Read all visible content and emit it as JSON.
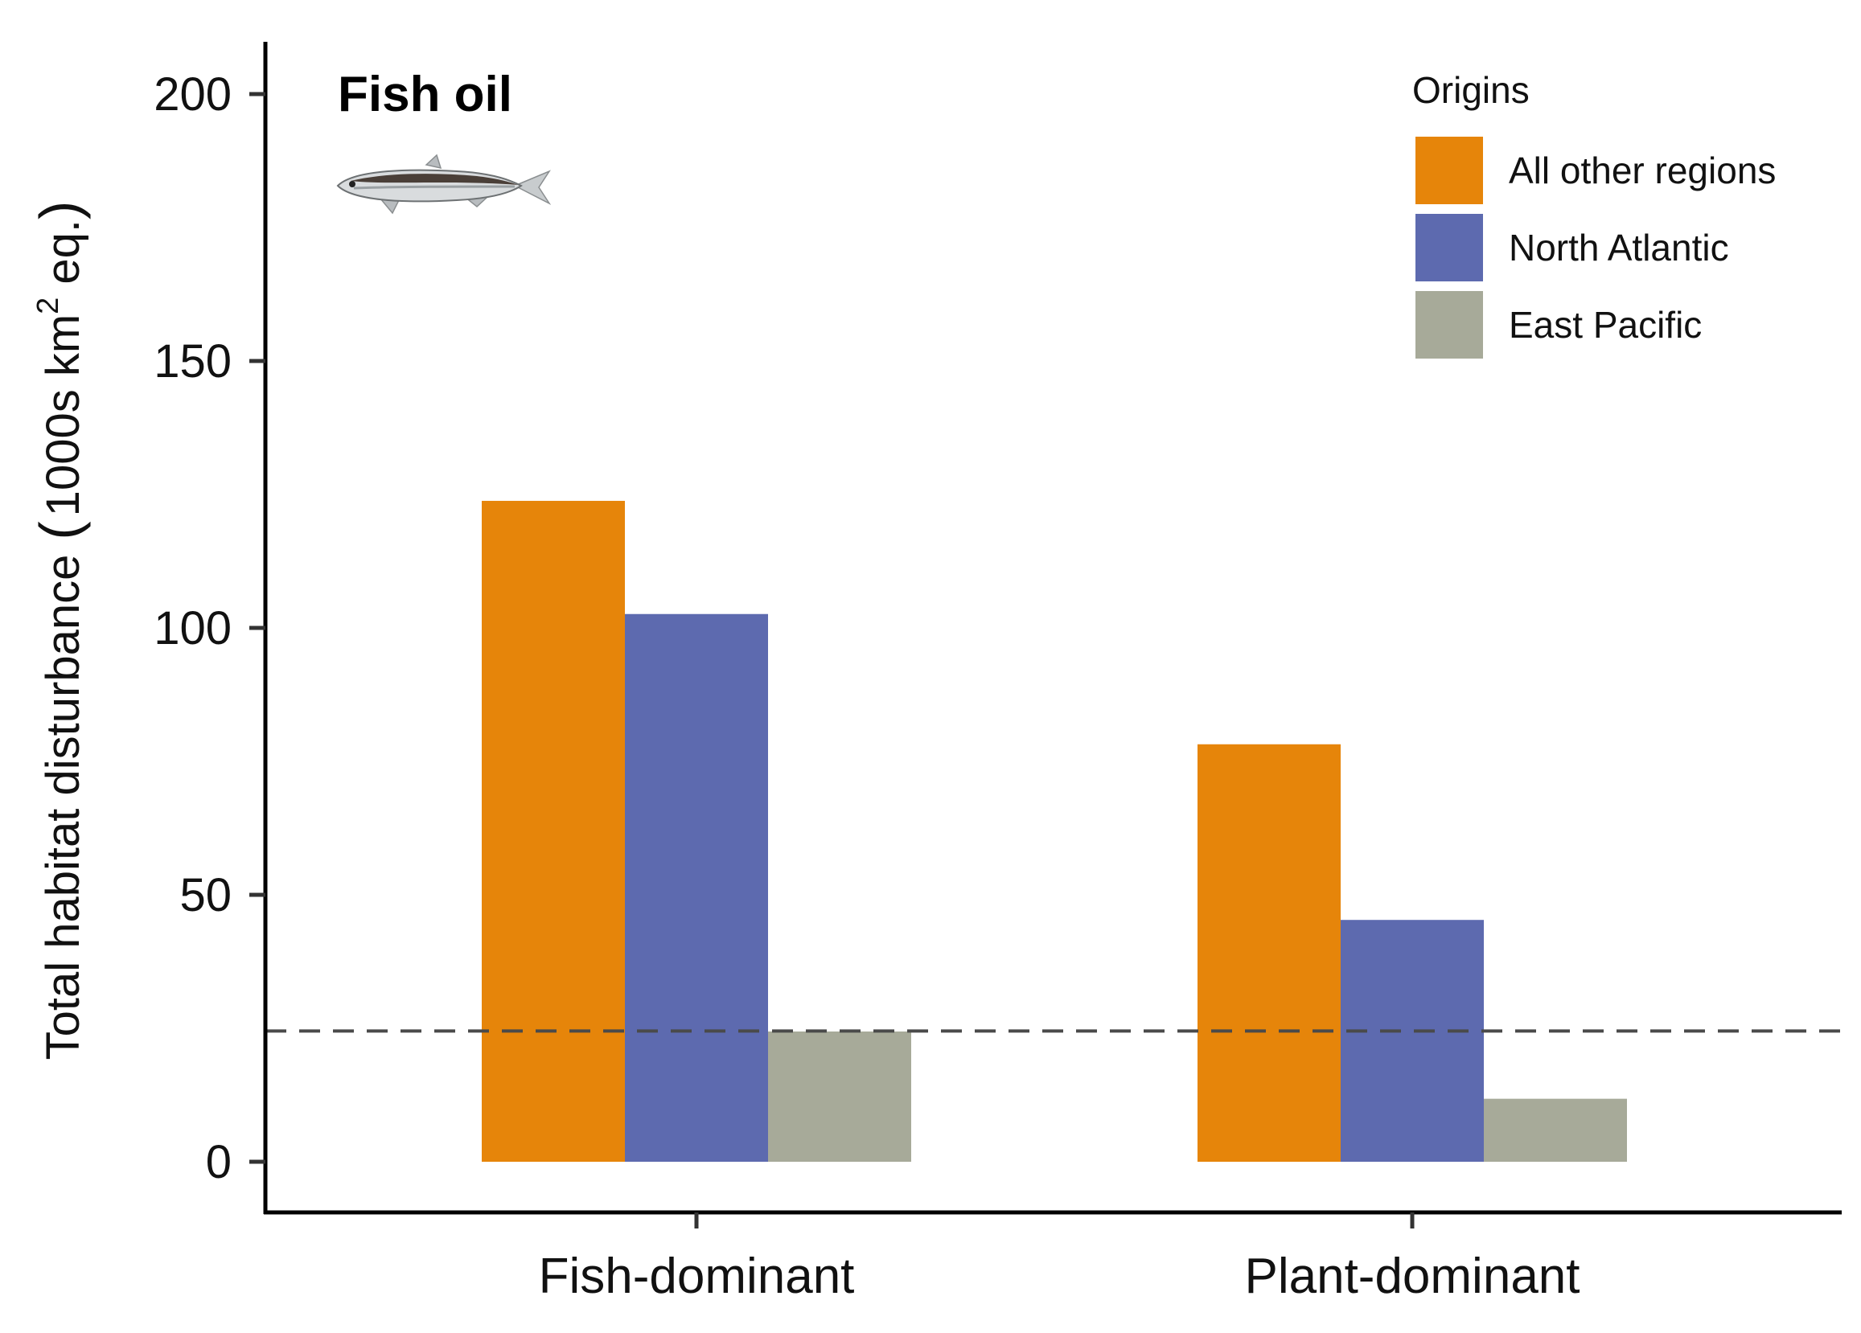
{
  "chart_data": {
    "type": "bar",
    "title": "Fish oil",
    "ylabel_main": "Total habitat disturbance",
    "ylabel_unit_prefix": "1000s km",
    "ylabel_unit_sup": "2",
    "ylabel_unit_suffix": " eq.",
    "ylim": [
      -10,
      210
    ],
    "yticks": [
      0,
      50,
      100,
      150,
      200
    ],
    "categories": [
      "Fish-dominant",
      "Plant-dominant"
    ],
    "legend_title": "Origins",
    "legend_position": "top-right",
    "grid": false,
    "series": [
      {
        "name": "All other regions",
        "color": "#E6850A",
        "values": [
          123.8,
          78.2
        ]
      },
      {
        "name": "North Atlantic",
        "color": "#5D6AAF",
        "values": [
          102.6,
          45.3
        ]
      },
      {
        "name": "East Pacific",
        "color": "#A7AA99",
        "values": [
          24.4,
          11.8
        ]
      }
    ],
    "reference_line": {
      "value": 24.5,
      "style": "dashed",
      "color": "#4a4a4a"
    },
    "icon": "anchovy-fish-icon"
  }
}
